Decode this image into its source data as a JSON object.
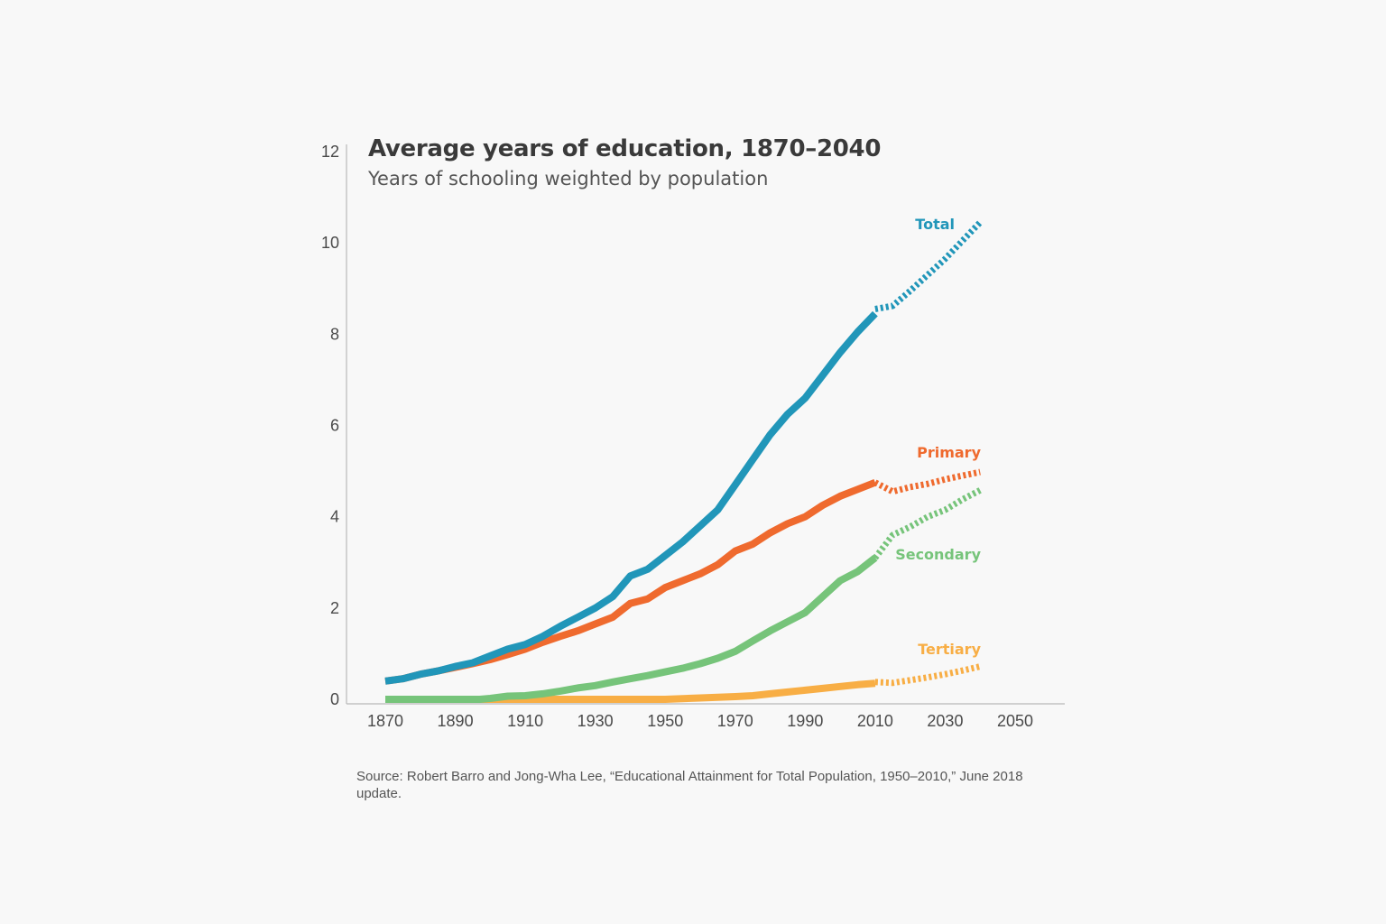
{
  "chart": {
    "title": "Average years of education, 1870–2040",
    "subtitle": "Years of schooling weighted by population",
    "source": "Source: Robert Barro and Jong-Wha Lee, “Educational Attainment for Total Population, 1950–2010,” June 2018 update."
  },
  "chart_data": {
    "type": "line",
    "title": "Average years of education, 1870–2040",
    "subtitle": "Years of schooling weighted by population",
    "xlabel": "",
    "ylabel": "",
    "xlim": [
      1860,
      2055
    ],
    "ylim": [
      0,
      12
    ],
    "x_ticks": [
      1870,
      1890,
      1910,
      1930,
      1950,
      1970,
      1990,
      2010,
      2030,
      2050
    ],
    "y_ticks": [
      0,
      2,
      4,
      6,
      8,
      10,
      12
    ],
    "grid": false,
    "legend": "direct labels at right end of each series",
    "projection_style": "dotted after 2010",
    "series": [
      {
        "name": "Total",
        "color": "#2196b9",
        "actual": [
          [
            1870,
            0.4
          ],
          [
            1875,
            0.45
          ],
          [
            1880,
            0.55
          ],
          [
            1885,
            0.62
          ],
          [
            1890,
            0.72
          ],
          [
            1895,
            0.8
          ],
          [
            1900,
            0.95
          ],
          [
            1905,
            1.1
          ],
          [
            1910,
            1.2
          ],
          [
            1915,
            1.38
          ],
          [
            1920,
            1.6
          ],
          [
            1925,
            1.8
          ],
          [
            1930,
            2.0
          ],
          [
            1935,
            2.25
          ],
          [
            1940,
            2.7
          ],
          [
            1945,
            2.85
          ],
          [
            1950,
            3.15
          ],
          [
            1955,
            3.45
          ],
          [
            1960,
            3.8
          ],
          [
            1965,
            4.15
          ],
          [
            1970,
            4.7
          ],
          [
            1975,
            5.25
          ],
          [
            1980,
            5.8
          ],
          [
            1985,
            6.25
          ],
          [
            1990,
            6.6
          ],
          [
            1995,
            7.1
          ],
          [
            2000,
            7.6
          ],
          [
            2005,
            8.05
          ],
          [
            2010,
            8.45
          ]
        ],
        "projection": [
          [
            2010,
            8.55
          ],
          [
            2015,
            8.62
          ],
          [
            2020,
            8.95
          ],
          [
            2025,
            9.3
          ],
          [
            2030,
            9.65
          ],
          [
            2035,
            10.05
          ],
          [
            2040,
            10.45
          ]
        ]
      },
      {
        "name": "Primary",
        "color": "#ef6a2e",
        "actual": [
          [
            1870,
            0.4
          ],
          [
            1875,
            0.45
          ],
          [
            1880,
            0.55
          ],
          [
            1885,
            0.62
          ],
          [
            1890,
            0.7
          ],
          [
            1895,
            0.78
          ],
          [
            1900,
            0.87
          ],
          [
            1905,
            0.98
          ],
          [
            1910,
            1.1
          ],
          [
            1915,
            1.25
          ],
          [
            1920,
            1.38
          ],
          [
            1925,
            1.5
          ],
          [
            1930,
            1.65
          ],
          [
            1935,
            1.8
          ],
          [
            1940,
            2.1
          ],
          [
            1945,
            2.2
          ],
          [
            1950,
            2.45
          ],
          [
            1955,
            2.6
          ],
          [
            1960,
            2.75
          ],
          [
            1965,
            2.95
          ],
          [
            1970,
            3.25
          ],
          [
            1975,
            3.4
          ],
          [
            1980,
            3.65
          ],
          [
            1985,
            3.85
          ],
          [
            1990,
            4.0
          ],
          [
            1995,
            4.25
          ],
          [
            2000,
            4.45
          ],
          [
            2005,
            4.6
          ],
          [
            2010,
            4.75
          ]
        ],
        "projection": [
          [
            2010,
            4.75
          ],
          [
            2015,
            4.55
          ],
          [
            2020,
            4.65
          ],
          [
            2025,
            4.72
          ],
          [
            2030,
            4.82
          ],
          [
            2035,
            4.9
          ],
          [
            2040,
            4.98
          ]
        ]
      },
      {
        "name": "Secondary",
        "color": "#76c47a",
        "actual": [
          [
            1870,
            0.0
          ],
          [
            1880,
            0.0
          ],
          [
            1890,
            0.0
          ],
          [
            1897,
            0.0
          ],
          [
            1900,
            0.02
          ],
          [
            1905,
            0.07
          ],
          [
            1910,
            0.08
          ],
          [
            1915,
            0.12
          ],
          [
            1920,
            0.18
          ],
          [
            1925,
            0.25
          ],
          [
            1930,
            0.3
          ],
          [
            1935,
            0.38
          ],
          [
            1940,
            0.45
          ],
          [
            1945,
            0.52
          ],
          [
            1950,
            0.6
          ],
          [
            1955,
            0.68
          ],
          [
            1960,
            0.78
          ],
          [
            1965,
            0.9
          ],
          [
            1970,
            1.05
          ],
          [
            1975,
            1.28
          ],
          [
            1980,
            1.5
          ],
          [
            1985,
            1.7
          ],
          [
            1990,
            1.9
          ],
          [
            1995,
            2.25
          ],
          [
            2000,
            2.6
          ],
          [
            2005,
            2.8
          ],
          [
            2010,
            3.1
          ]
        ],
        "projection": [
          [
            2010,
            3.1
          ],
          [
            2015,
            3.6
          ],
          [
            2020,
            3.78
          ],
          [
            2025,
            4.0
          ],
          [
            2030,
            4.15
          ],
          [
            2035,
            4.38
          ],
          [
            2040,
            4.58
          ]
        ]
      },
      {
        "name": "Tertiary",
        "color": "#f8ae45",
        "actual": [
          [
            1870,
            0.0
          ],
          [
            1900,
            0.0
          ],
          [
            1930,
            0.0
          ],
          [
            1950,
            0.0
          ],
          [
            1960,
            0.03
          ],
          [
            1970,
            0.06
          ],
          [
            1975,
            0.08
          ],
          [
            1980,
            0.12
          ],
          [
            1985,
            0.16
          ],
          [
            1990,
            0.2
          ],
          [
            1995,
            0.24
          ],
          [
            2000,
            0.28
          ],
          [
            2005,
            0.32
          ],
          [
            2010,
            0.35
          ]
        ],
        "projection": [
          [
            2010,
            0.38
          ],
          [
            2015,
            0.36
          ],
          [
            2020,
            0.42
          ],
          [
            2025,
            0.48
          ],
          [
            2030,
            0.55
          ],
          [
            2035,
            0.63
          ],
          [
            2040,
            0.72
          ]
        ]
      }
    ]
  }
}
